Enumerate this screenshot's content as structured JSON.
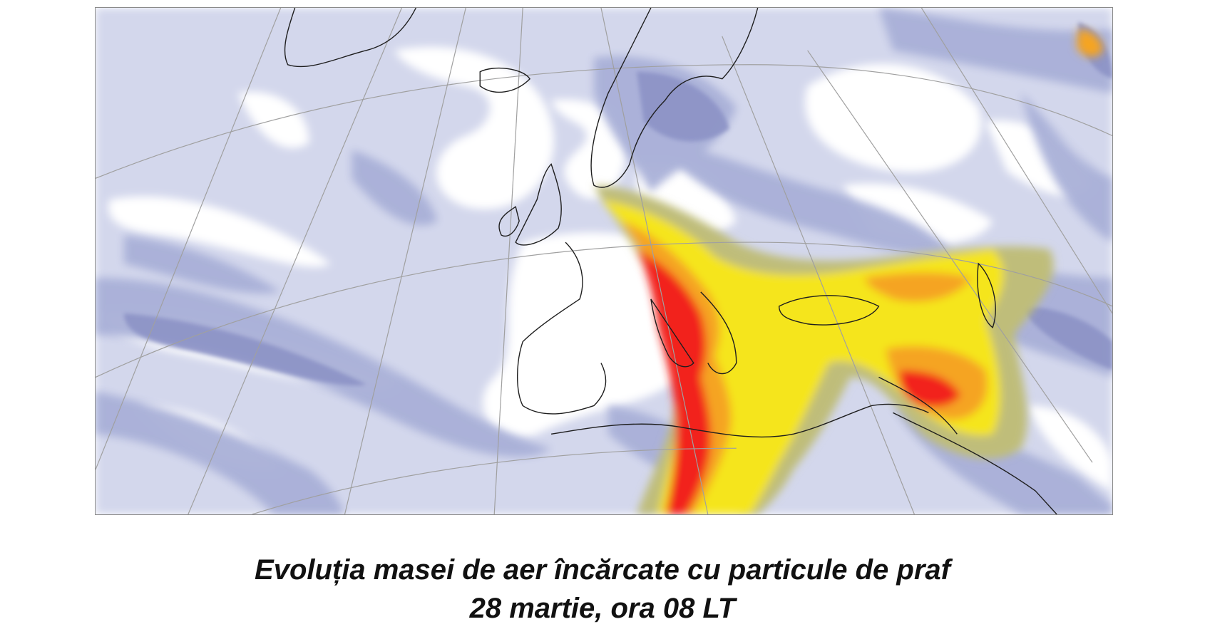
{
  "caption": {
    "line1": "Evoluția masei de aer încărcate cu particule de praf",
    "line2": "28 martie, ora 08 LT"
  },
  "map": {
    "content": "dust forecast over Europe, North Africa and the Middle East",
    "colors": {
      "none": "#ffffff",
      "very_low": "#d3d7ec",
      "low": "#a9b0d8",
      "low_mid": "#8c93c6",
      "olive": "#bfbd7a",
      "yellow": "#f5e51c",
      "orange": "#f5a420",
      "red": "#f2231c",
      "coast": "#1e1e1e",
      "grid": "#a0a0a0"
    }
  }
}
